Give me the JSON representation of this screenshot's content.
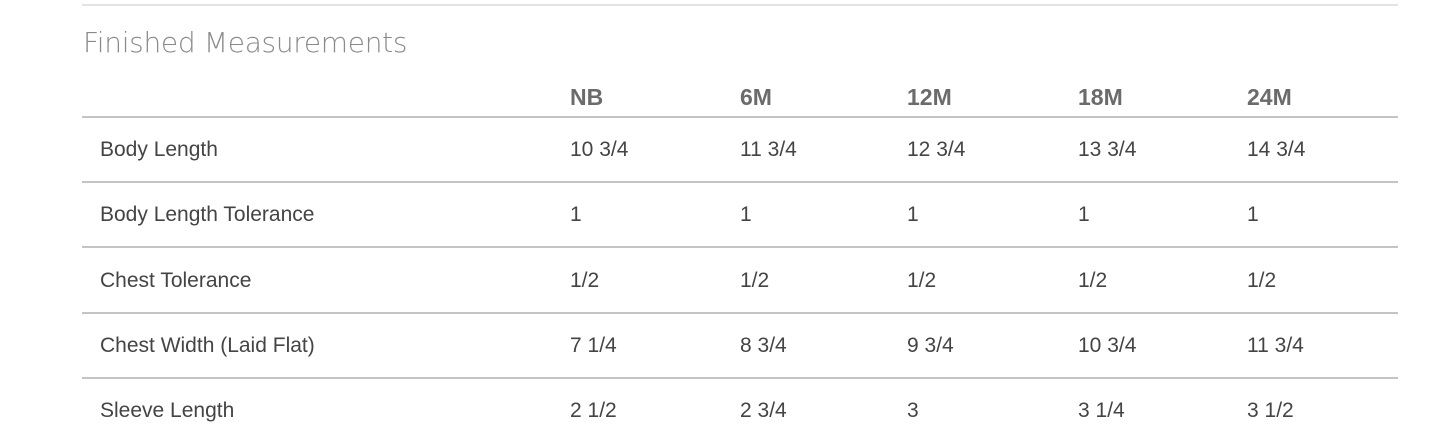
{
  "title": "Finished Measurements",
  "columns": [
    "NB",
    "6M",
    "12M",
    "18M",
    "24M"
  ],
  "rows": [
    {
      "label": "Body Length",
      "values": [
        "10 3/4",
        "11 3/4",
        "12 3/4",
        "13 3/4",
        "14 3/4"
      ]
    },
    {
      "label": "Body Length Tolerance",
      "values": [
        "1",
        "1",
        "1",
        "1",
        "1"
      ]
    },
    {
      "label": "Chest Tolerance",
      "values": [
        "1/2",
        "1/2",
        "1/2",
        "1/2",
        "1/2"
      ]
    },
    {
      "label": "Chest Width (Laid Flat)",
      "values": [
        "7 1/4",
        "8 3/4",
        "9 3/4",
        "10 3/4",
        "11 3/4"
      ]
    },
    {
      "label": "Sleeve Length",
      "values": [
        "2 1/2",
        "2 3/4",
        "3",
        "3 1/4",
        "3 1/2"
      ]
    }
  ]
}
